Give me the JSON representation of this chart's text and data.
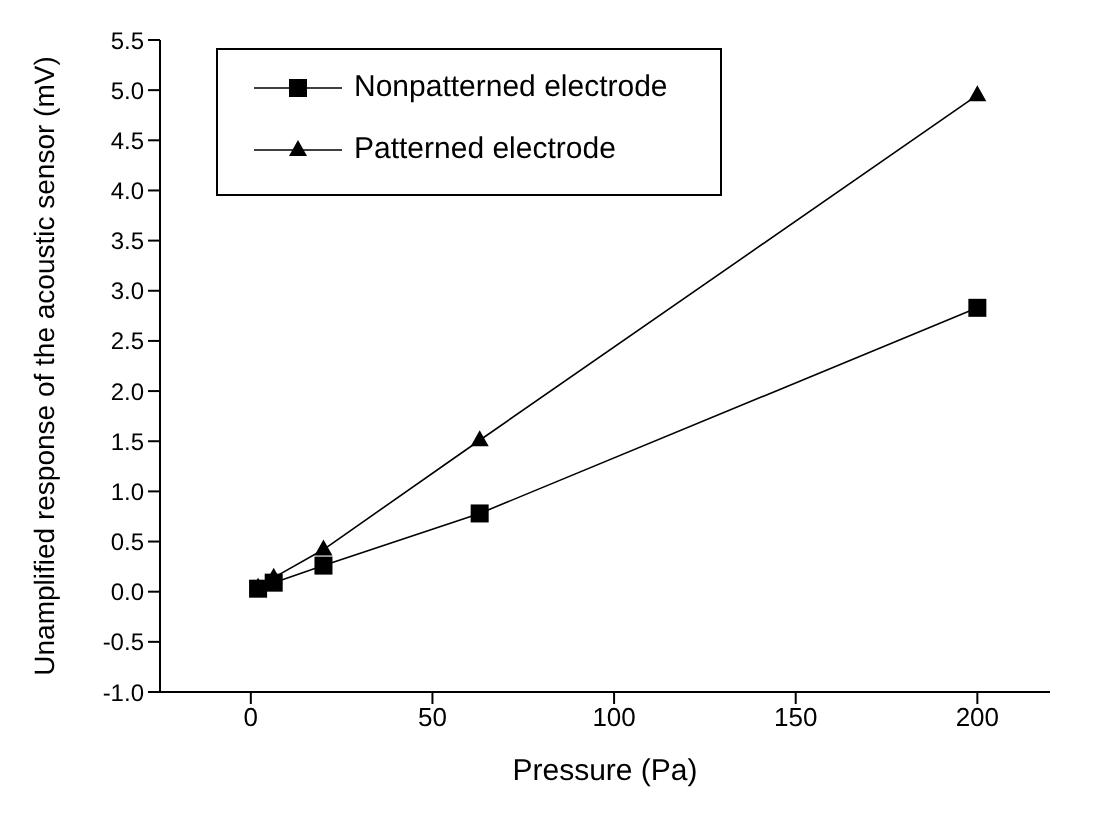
{
  "chart_data": {
    "type": "line",
    "xlabel": "Pressure (Pa)",
    "ylabel": "Unamplified response of the acoustic sensor (mV)",
    "x": [
      2,
      6.3,
      20,
      63,
      200
    ],
    "series": [
      {
        "name": "Nonpatterned electrode",
        "color": "#000000",
        "marker": "square",
        "values": [
          0.03,
          0.09,
          0.26,
          0.78,
          2.83
        ]
      },
      {
        "name": "Patterned electrode",
        "color": "#000000",
        "marker": "triangle",
        "values": [
          0.04,
          0.14,
          0.42,
          1.51,
          4.95
        ]
      }
    ],
    "xlim": [
      -25,
      220
    ],
    "xticks": [
      0,
      50,
      100,
      150,
      200
    ],
    "ylim": [
      -1,
      5.5
    ],
    "yticks": [
      {
        "value": -1,
        "label": "-1.0"
      },
      {
        "value": -0.5,
        "label": "-0.5"
      },
      {
        "value": 0,
        "label": "0.0"
      },
      {
        "value": 0.5,
        "label": "0.5"
      },
      {
        "value": 1,
        "label": "1.0"
      },
      {
        "value": 1.5,
        "label": "1.5"
      },
      {
        "value": 2,
        "label": "2.0"
      },
      {
        "value": 2.5,
        "label": "2.5"
      },
      {
        "value": 3,
        "label": "3.0"
      },
      {
        "value": 3.5,
        "label": "3.5"
      },
      {
        "value": 4,
        "label": "4.0"
      },
      {
        "value": 4.5,
        "label": "4.5"
      },
      {
        "value": 5,
        "label": "5.0"
      },
      {
        "value": 5.5,
        "label": "5.5"
      }
    ],
    "grid": false,
    "legend": "top left",
    "line_style": "solid"
  }
}
